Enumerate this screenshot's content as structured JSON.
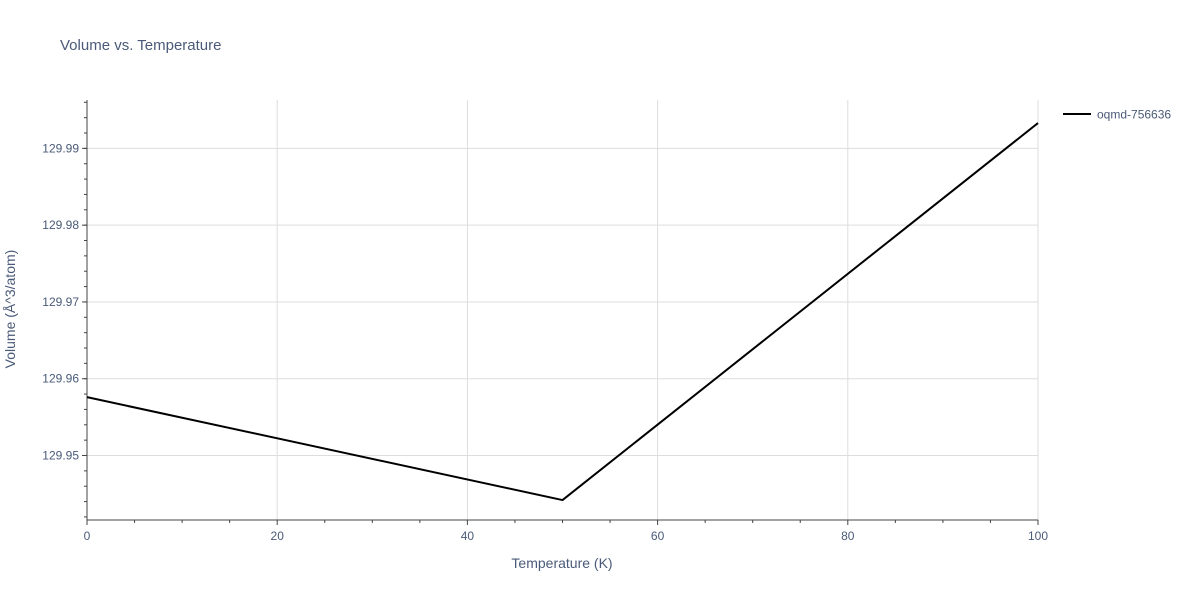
{
  "chart_data": {
    "type": "line",
    "title": "Volume vs. Temperature",
    "xlabel": "Temperature (K)",
    "ylabel": "Volume (Å^3/atom)",
    "xlim": [
      0,
      100
    ],
    "ylim": [
      129.9416,
      129.9963
    ],
    "x_ticks": [
      0,
      20,
      40,
      60,
      80,
      100
    ],
    "y_ticks": [
      129.95,
      129.96,
      129.97,
      129.98,
      129.99
    ],
    "y_tick_labels": [
      "129.95",
      "129.96",
      "129.97",
      "129.98",
      "129.99"
    ],
    "grid": true,
    "legend_position": "top-right",
    "series": [
      {
        "name": "oqmd-756636",
        "color": "#000000",
        "x": [
          0,
          50,
          100
        ],
        "y": [
          129.9576,
          129.9442,
          129.9933
        ]
      }
    ]
  }
}
